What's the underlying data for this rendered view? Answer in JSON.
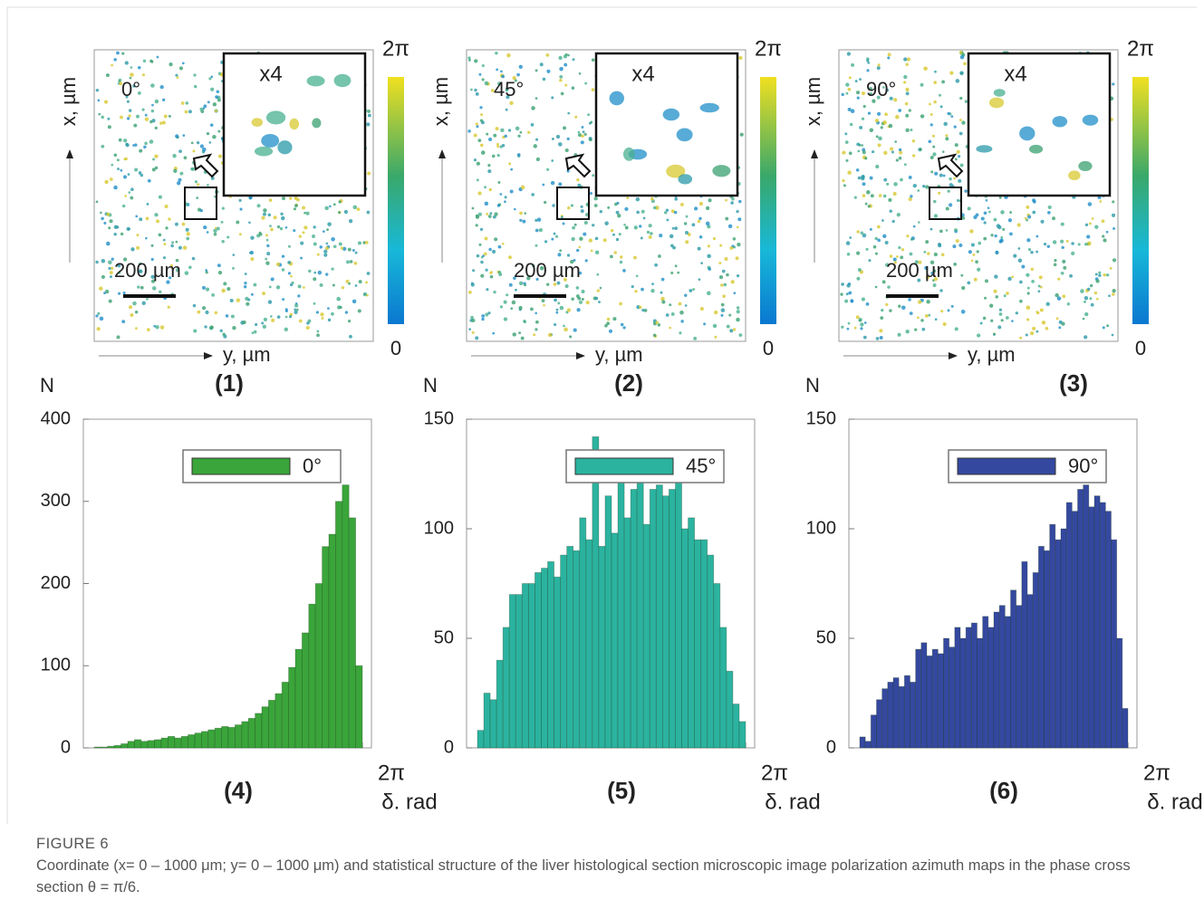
{
  "maps": [
    {
      "angle": "0°",
      "zoom": "x4",
      "scale_bar": "200 µm",
      "x_label": "x, µm",
      "y_label": "y, µm",
      "colorbar_max": "2π",
      "colorbar_min": "0",
      "label": "(1)"
    },
    {
      "angle": "45°",
      "zoom": "x4",
      "scale_bar": "200 µm",
      "x_label": "x, µm",
      "y_label": "y, µm",
      "colorbar_max": "2π",
      "colorbar_min": "0",
      "label": "(2)"
    },
    {
      "angle": "90°",
      "zoom": "x4",
      "scale_bar": "200 µm",
      "x_label": "x, µm",
      "y_label": "y, µm",
      "colorbar_max": "2π",
      "colorbar_min": "0",
      "label": "(3)"
    }
  ],
  "chart_data": [
    {
      "type": "histogram",
      "label": "(4)",
      "y_label": "N",
      "x_label": "δ. rad",
      "ylim": [
        0,
        400
      ],
      "yticks": [
        0,
        100,
        200,
        300,
        400
      ],
      "xticks": [
        {
          "value": 1,
          "label": "2π"
        }
      ],
      "legend": "top-right",
      "series": [
        {
          "name": "0°",
          "color": "#3aa53a",
          "values": [
            1,
            1,
            2,
            3,
            5,
            8,
            10,
            8,
            9,
            10,
            12,
            14,
            12,
            14,
            16,
            18,
            20,
            22,
            24,
            26,
            25,
            28,
            32,
            36,
            42,
            50,
            58,
            66,
            80,
            98,
            120,
            140,
            175,
            200,
            245,
            260,
            300,
            320,
            280,
            100
          ]
        }
      ]
    },
    {
      "type": "histogram",
      "label": "(5)",
      "y_label": "N",
      "x_label": "δ. rad",
      "ylim": [
        0,
        150
      ],
      "yticks": [
        0,
        50,
        100,
        150
      ],
      "xticks": [
        {
          "value": 1,
          "label": "2π"
        }
      ],
      "legend": "top-right",
      "series": [
        {
          "name": "45°",
          "color": "#2bb3a0",
          "values": [
            8,
            25,
            22,
            40,
            55,
            70,
            70,
            75,
            75,
            80,
            82,
            85,
            78,
            88,
            92,
            90,
            105,
            95,
            142,
            92,
            115,
            98,
            128,
            105,
            118,
            125,
            102,
            118,
            120,
            115,
            118,
            132,
            100,
            105,
            95,
            95,
            88,
            75,
            55,
            35,
            20,
            12
          ]
        }
      ]
    },
    {
      "type": "histogram",
      "label": "(6)",
      "y_label": "N",
      "x_label": "δ. rad",
      "ylim": [
        0,
        150
      ],
      "yticks": [
        0,
        50,
        100,
        150
      ],
      "xticks": [
        {
          "value": 1,
          "label": "2π"
        }
      ],
      "legend": "top-right",
      "series": [
        {
          "name": "90°",
          "color": "#3548a0",
          "values": [
            5,
            3,
            15,
            22,
            27,
            30,
            32,
            28,
            33,
            30,
            45,
            48,
            42,
            45,
            43,
            50,
            46,
            55,
            50,
            55,
            57,
            50,
            60,
            55,
            62,
            65,
            60,
            72,
            65,
            85,
            70,
            80,
            92,
            90,
            102,
            95,
            100,
            112,
            108,
            118,
            120,
            110,
            115,
            112,
            108,
            95,
            50,
            18
          ]
        }
      ]
    }
  ],
  "caption": {
    "figure": "FIGURE 6",
    "text": "Coordinate (x= 0 – 1000 μm; y= 0 – 1000 μm) and statistical structure of the liver histological section microscopic image polarization azimuth maps in the phase cross section θ = π/6."
  }
}
